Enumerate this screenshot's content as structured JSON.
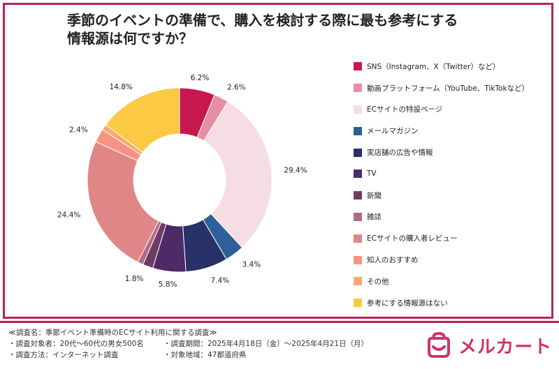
{
  "title": {
    "line1": "季節のイベントの準備で、購入を検討する際に最も参考にする",
    "line2": "情報源は何ですか？"
  },
  "chart_data": {
    "type": "pie",
    "style": "donut",
    "start_angle_deg": 0,
    "direction": "clockwise",
    "categories": [
      "SNS（Instagram、X（Twitter）など）",
      "動画プラットフォーム（YouTube、TikTokなど）",
      "ECサイトの特設ページ",
      "メールマガジン",
      "実店舗の広告や情報",
      "TV",
      "新聞",
      "雑誌",
      "ECサイトの購入者レビュー",
      "知人のおすすめ",
      "その他",
      "参考にする情報源はない"
    ],
    "values": [
      6.2,
      2.6,
      29.4,
      3.4,
      7.4,
      5.8,
      1.8,
      1.0,
      24.4,
      2.4,
      1.0,
      14.8
    ],
    "labels": [
      "6.2%",
      "2.6%",
      "29.4%",
      "3.4%",
      "7.4%",
      "5.8%",
      "1.8%",
      "",
      "24.4%",
      "2.4%",
      "",
      "14.8%"
    ],
    "colors": [
      "#c8174f",
      "#e48fa6",
      "#f5dde3",
      "#2f5f98",
      "#283268",
      "#4e2a66",
      "#6e3c63",
      "#b06a86",
      "#e08686",
      "#f79383",
      "#f9a870",
      "#fcc944"
    ],
    "legend_position": "right"
  },
  "footer": {
    "survey_name": "≪調査名：季節イベント準備時のECサイト利用に関する調査≫",
    "target": "・調査対象者：20代～60代の男女500名",
    "period": "・調査期間：2025年4月18日（金）～2025年4月21日（月）",
    "method": "・調査方法：インターネット調査",
    "region": "・対象地域：47都道府県"
  },
  "logo": {
    "text": "メルカート",
    "color": "#d1326a"
  }
}
